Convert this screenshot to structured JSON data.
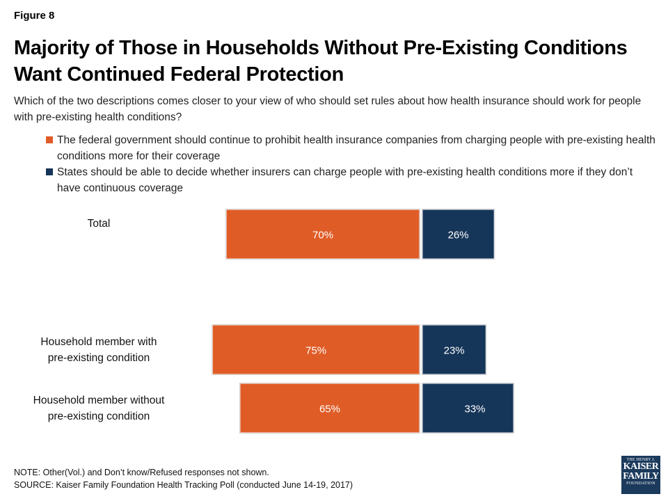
{
  "figure_label": "Figure 8",
  "colors": {
    "federal": "#e05c27",
    "states": "#163659"
  },
  "logo": {
    "line1": "THE HENRY J.",
    "line2a": "KAISER",
    "line2b": "FAMILY",
    "line3": "FOUNDATION"
  },
  "footer": {
    "note": "NOTE: Other(Vol.) and Don’t know/Refused responses not shown.",
    "source": "SOURCE: Kaiser Family Foundation Health Tracking Poll (conducted June 14-19, 2017)"
  },
  "chart_data": {
    "type": "bar",
    "orientation": "horizontal-diverging",
    "title": "Majority of Those in Households Without Pre-Existing Conditions Want Continued Federal Protection",
    "subtitle": "Which of the two descriptions comes closer to your view of who should set rules about how health insurance should work for people with pre-existing health conditions?",
    "legend_position": "top",
    "categories": [
      [
        "Total"
      ],
      [
        "Household member with",
        "pre-existing condition"
      ],
      [
        "Household member without",
        "pre-existing condition"
      ]
    ],
    "series": [
      {
        "name": "The federal government should continue to prohibit health insurance companies from charging people with pre-existing health conditions more for their coverage",
        "values": [
          70,
          75,
          65
        ],
        "labels": [
          "70%",
          "75%",
          "65%"
        ]
      },
      {
        "name": "States should be able to decide whether insurers can charge people with pre-existing health conditions more if they don’t have continuous coverage",
        "values": [
          26,
          23,
          33
        ],
        "labels": [
          "26%",
          "23%",
          "33%"
        ]
      }
    ]
  }
}
